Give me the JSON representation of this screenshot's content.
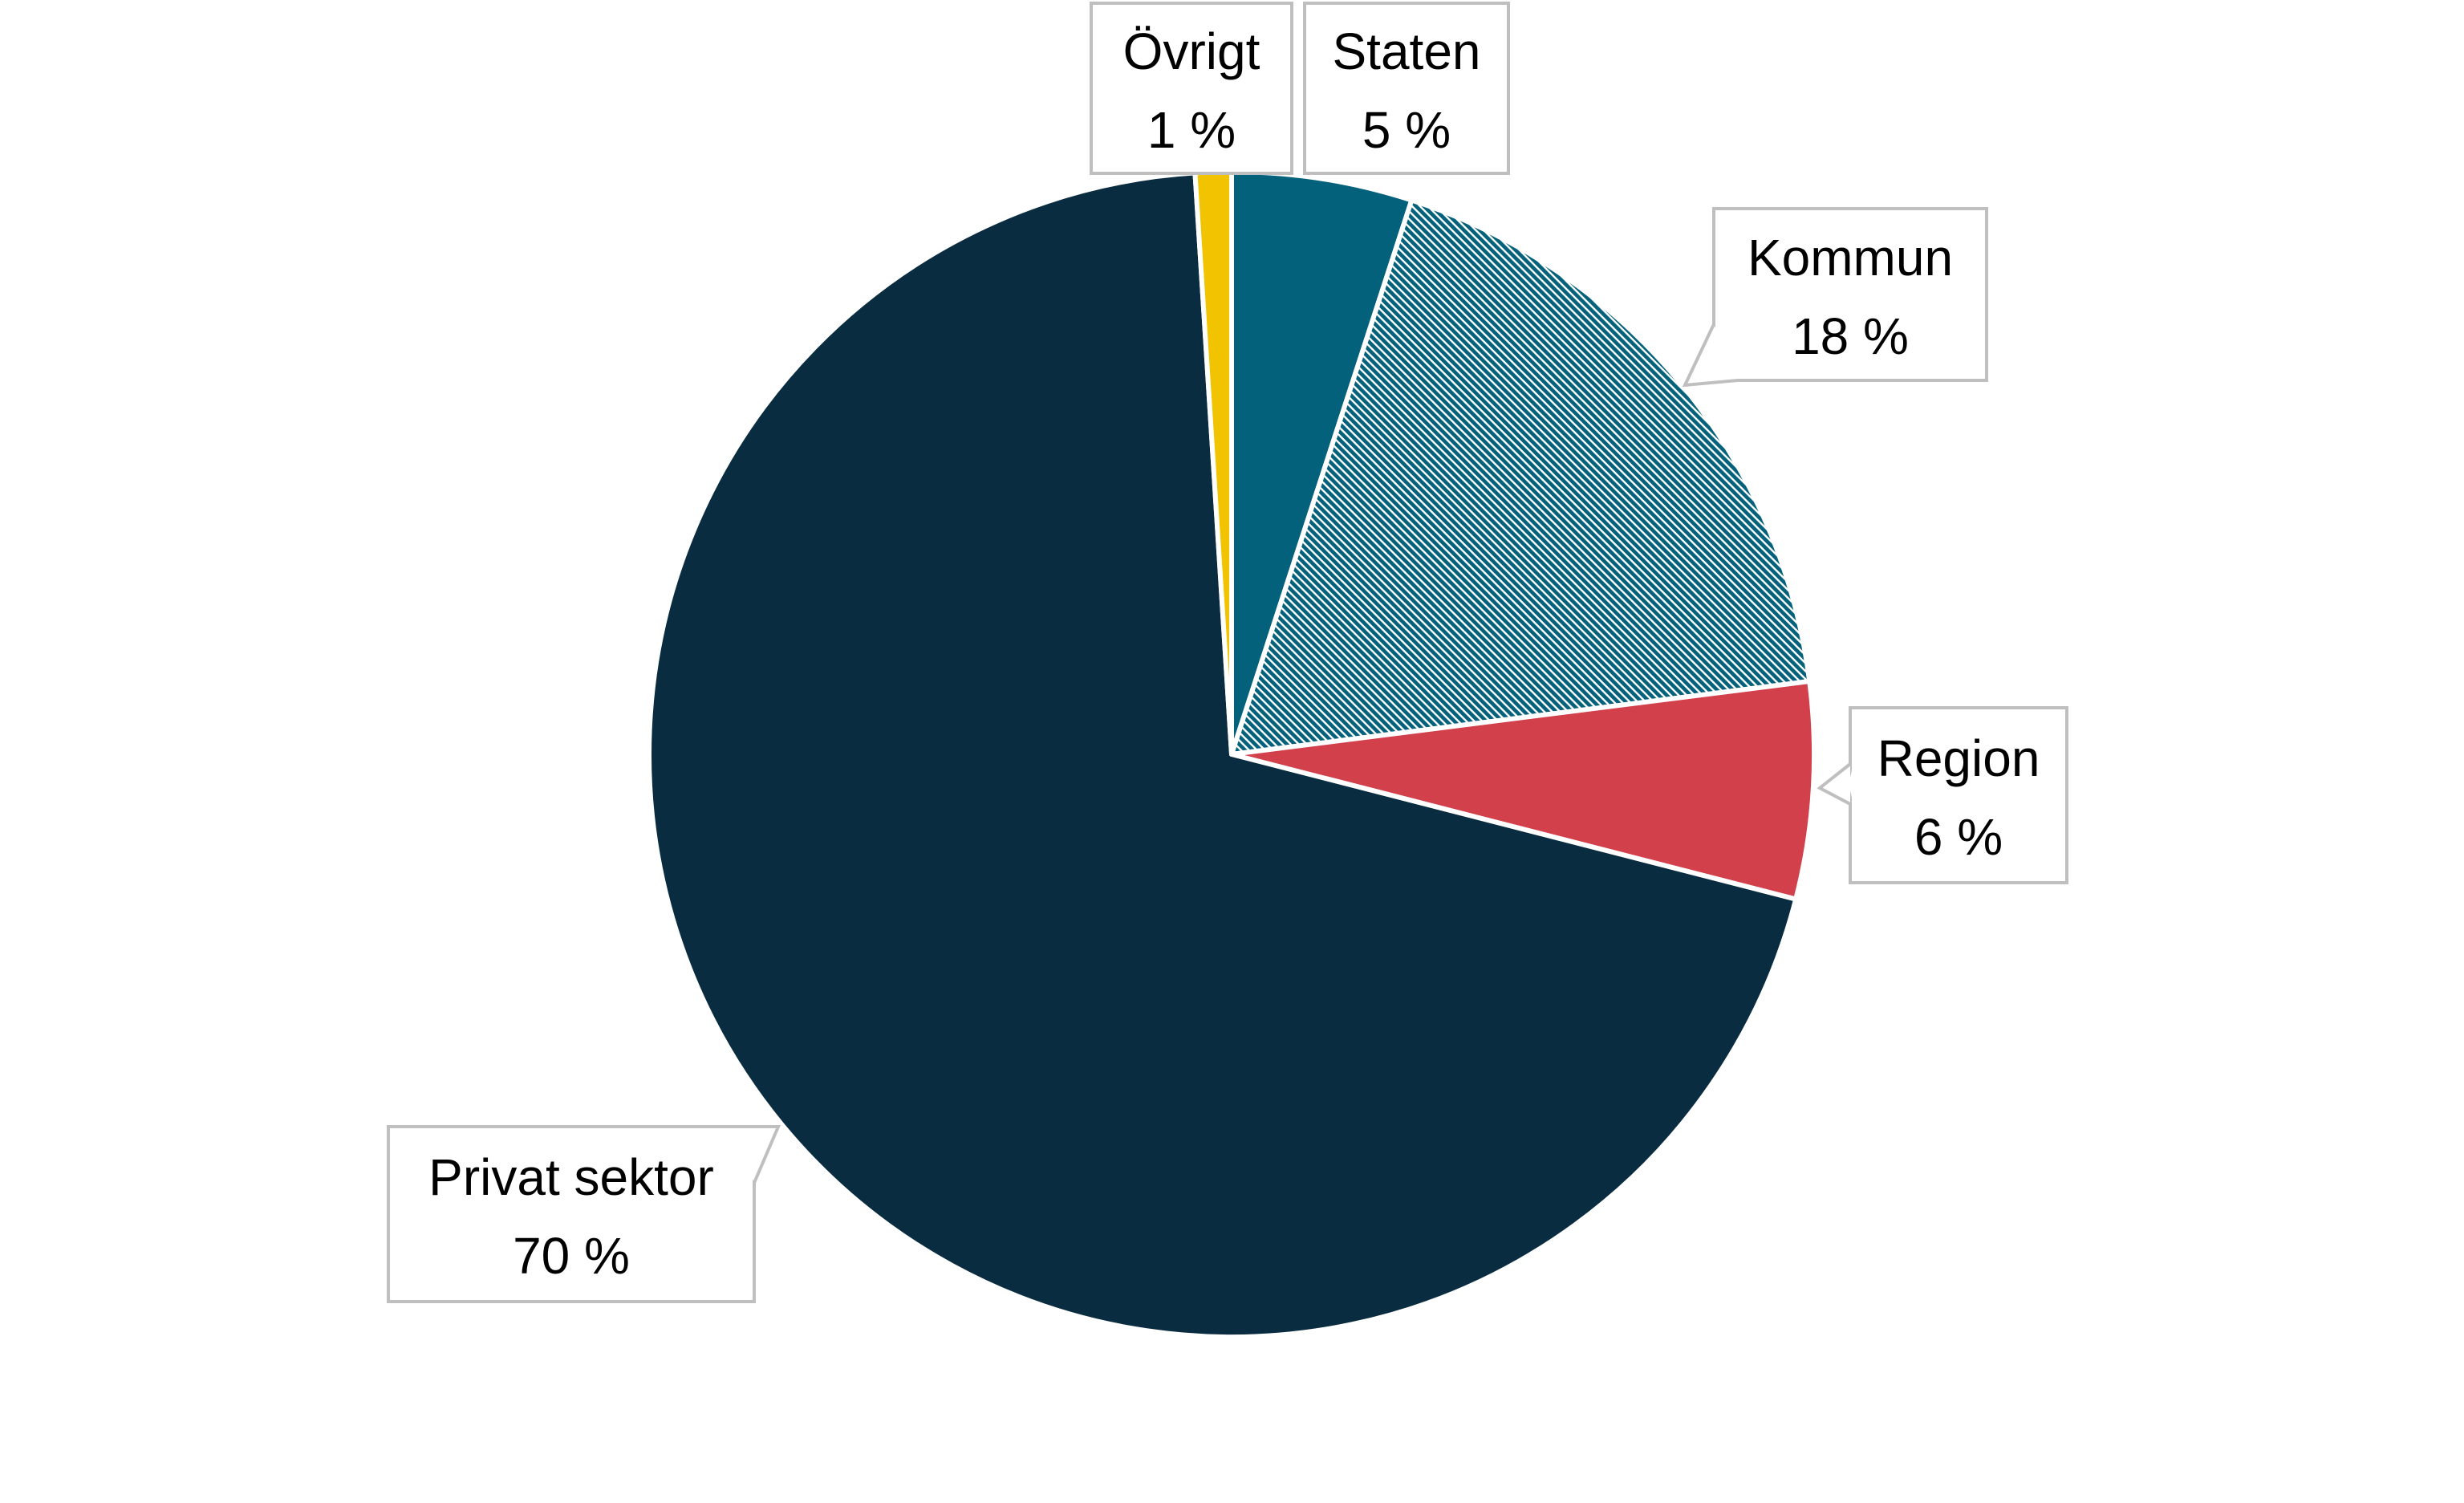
{
  "chart_data": {
    "type": "pie",
    "title": "",
    "start_angle_deg": 0,
    "direction": "clockwise",
    "slices": [
      {
        "name": "Staten",
        "value": 5,
        "label": "5 %",
        "color": "#04617b",
        "pattern": "none"
      },
      {
        "name": "Kommun",
        "value": 18,
        "label": "18 %",
        "color": "#04617b",
        "pattern": "diagonal-hatch"
      },
      {
        "name": "Region",
        "value": 6,
        "label": "6 %",
        "color": "#d2404c",
        "pattern": "none"
      },
      {
        "name": "Privat sektor",
        "value": 70,
        "label": "70 %",
        "color": "#0a2c40",
        "pattern": "none"
      },
      {
        "name": "Övrigt",
        "value": 1,
        "label": "1 %",
        "color": "#f2c300",
        "pattern": "none"
      }
    ],
    "legend": "none",
    "data_labels": "callout"
  }
}
